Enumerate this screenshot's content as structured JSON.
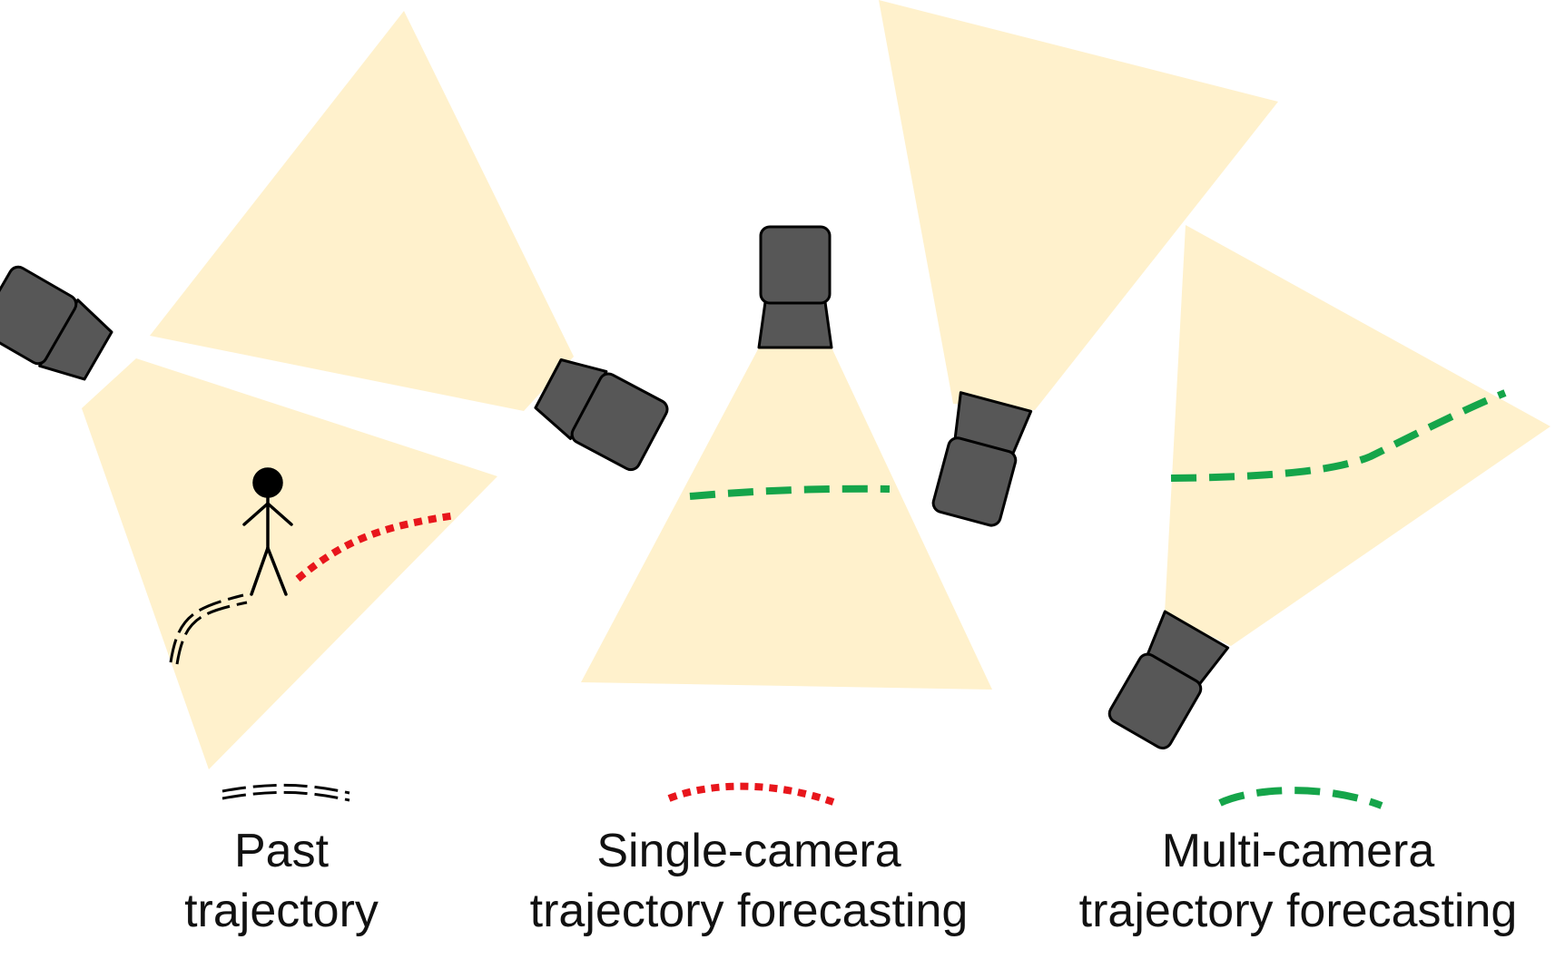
{
  "colors": {
    "field_of_view": "#fff1cc",
    "camera_body": "#575757",
    "camera_outline": "#000000",
    "past_trajectory": "#000000",
    "single_camera_forecast": "#e8161c",
    "multi_camera_forecast": "#15a54a"
  },
  "legend": [
    {
      "id": "past",
      "line_style": "double-dashed",
      "line_lines": [
        "Past",
        "trajectory"
      ]
    },
    {
      "id": "single",
      "line_style": "dotted",
      "line_lines": [
        "Single-camera",
        "trajectory forecasting"
      ]
    },
    {
      "id": "multi",
      "line_style": "dashed",
      "line_lines": [
        "Multi-camera",
        "trajectory forecasting"
      ]
    }
  ],
  "icons": [
    "camera-icon",
    "stick-figure-icon"
  ]
}
